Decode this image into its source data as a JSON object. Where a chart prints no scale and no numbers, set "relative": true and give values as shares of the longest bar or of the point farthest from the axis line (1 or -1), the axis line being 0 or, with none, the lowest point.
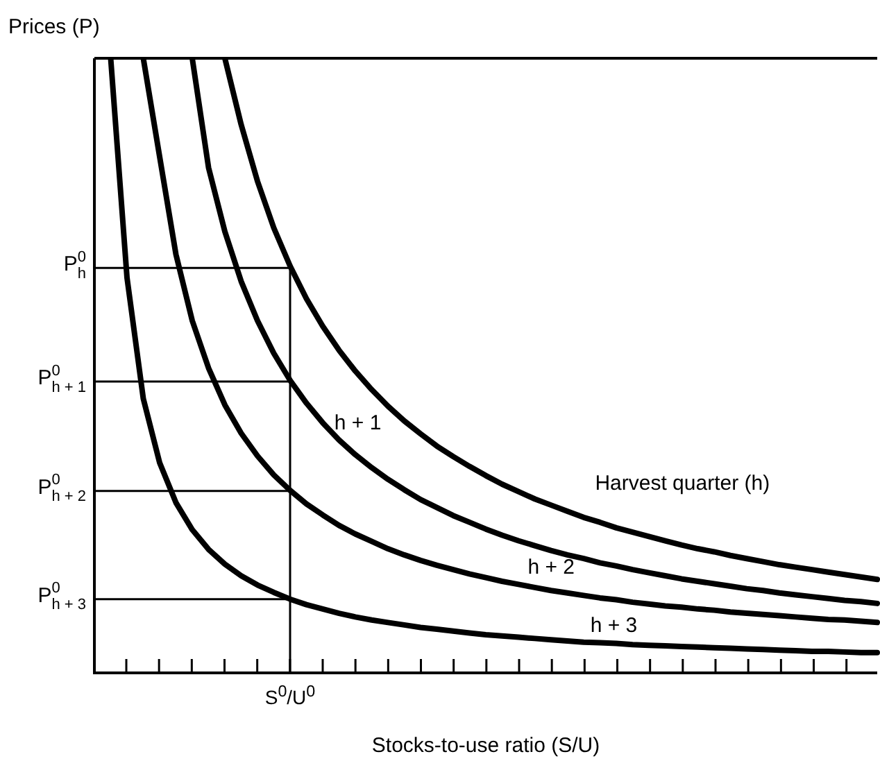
{
  "chart_data": {
    "type": "line",
    "relative": true,
    "xlabel": "Stocks-to-use ratio (S/U)",
    "ylabel": "Prices (P)",
    "legend": false,
    "marker": "none",
    "line_style": "solid",
    "annotations": [
      "S$^{0}$/U$^{0}$"
    ],
    "categories": [
      null,
      null,
      null,
      null,
      null,
      null,
      null,
      null,
      null,
      null,
      null,
      null,
      null,
      null,
      null,
      null,
      null,
      null,
      null,
      null,
      null,
      null,
      null,
      null,
      null,
      null,
      null,
      null,
      null,
      null,
      null,
      null,
      null,
      null,
      null,
      null,
      null,
      null,
      null,
      null,
      null,
      null,
      null,
      null,
      null,
      null,
      null,
      null,
      null
    ],
    "series": [
      {
        "name": "Harvest quarter (h)",
        "color": "#000000",
        "values": [
          null,
          null,
          null,
          null,
          null,
          null,
          null,
          null,
          1,
          0.892,
          0.8,
          0.724,
          0.662,
          0.609,
          0.564,
          0.525,
          0.491,
          0.461,
          0.434,
          0.41,
          0.389,
          0.369,
          0.352,
          0.336,
          0.321,
          0.307,
          0.295,
          0.283,
          0.273,
          0.263,
          0.253,
          0.245,
          0.236,
          0.229,
          0.222,
          0.215,
          0.208,
          0.202,
          0.197,
          0.191,
          0.186,
          0.181,
          0.176,
          0.172,
          0.168,
          0.164,
          0.16,
          0.156,
          0.152
        ]
      },
      {
        "name": "h + 1",
        "color": "#000000",
        "values": [
          null,
          null,
          null,
          null,
          null,
          null,
          1,
          0.822,
          0.718,
          0.637,
          0.573,
          0.52,
          0.476,
          0.439,
          0.407,
          0.379,
          0.355,
          0.334,
          0.315,
          0.298,
          0.282,
          0.269,
          0.256,
          0.245,
          0.234,
          0.224,
          0.215,
          0.207,
          0.199,
          0.192,
          0.186,
          0.179,
          0.174,
          0.168,
          0.163,
          0.158,
          0.153,
          0.149,
          0.145,
          0.141,
          0.137,
          0.134,
          0.13,
          0.127,
          0.124,
          0.121,
          0.118,
          0.116,
          0.113
        ]
      },
      {
        "name": "h + 2",
        "color": "#000000",
        "values": [
          null,
          null,
          null,
          1,
          0.84,
          0.681,
          0.573,
          0.496,
          0.436,
          0.39,
          0.353,
          0.322,
          0.297,
          0.275,
          0.257,
          0.24,
          0.226,
          0.214,
          0.202,
          0.192,
          0.183,
          0.175,
          0.168,
          0.161,
          0.155,
          0.149,
          0.144,
          0.139,
          0.134,
          0.13,
          0.126,
          0.122,
          0.119,
          0.115,
          0.112,
          0.109,
          0.107,
          0.104,
          0.102,
          0.099,
          0.097,
          0.095,
          0.093,
          0.091,
          0.089,
          0.087,
          0.086,
          0.084,
          0.082
        ]
      },
      {
        "name": "h + 3",
        "color": "#000000",
        "values": [
          null,
          1,
          0.643,
          0.446,
          0.342,
          0.277,
          0.233,
          0.201,
          0.177,
          0.158,
          0.143,
          0.131,
          0.12,
          0.111,
          0.104,
          0.097,
          0.091,
          0.086,
          0.082,
          0.078,
          0.074,
          0.071,
          0.068,
          0.065,
          0.062,
          0.06,
          0.058,
          0.056,
          0.054,
          0.052,
          0.05,
          0.049,
          0.048,
          0.046,
          0.045,
          0.044,
          0.043,
          0.042,
          0.041,
          0.04,
          0.039,
          0.038,
          0.037,
          0.036,
          0.035,
          0.035,
          0.034,
          0.033,
          0.033
        ]
      }
    ],
    "ref_lines": [
      {
        "axis": "y",
        "value": 0.659,
        "label": "P$^{0}$$_{h}$"
      },
      {
        "axis": "y",
        "value": 0.474,
        "label": "P$^{0}$$_{h + 1}$"
      },
      {
        "axis": "y",
        "value": 0.296,
        "label": "P$^{0}$$_{h + 2}$"
      },
      {
        "axis": "y",
        "value": 0.12,
        "label": "P$^{0}$$_{h + 3}$"
      }
    ]
  }
}
